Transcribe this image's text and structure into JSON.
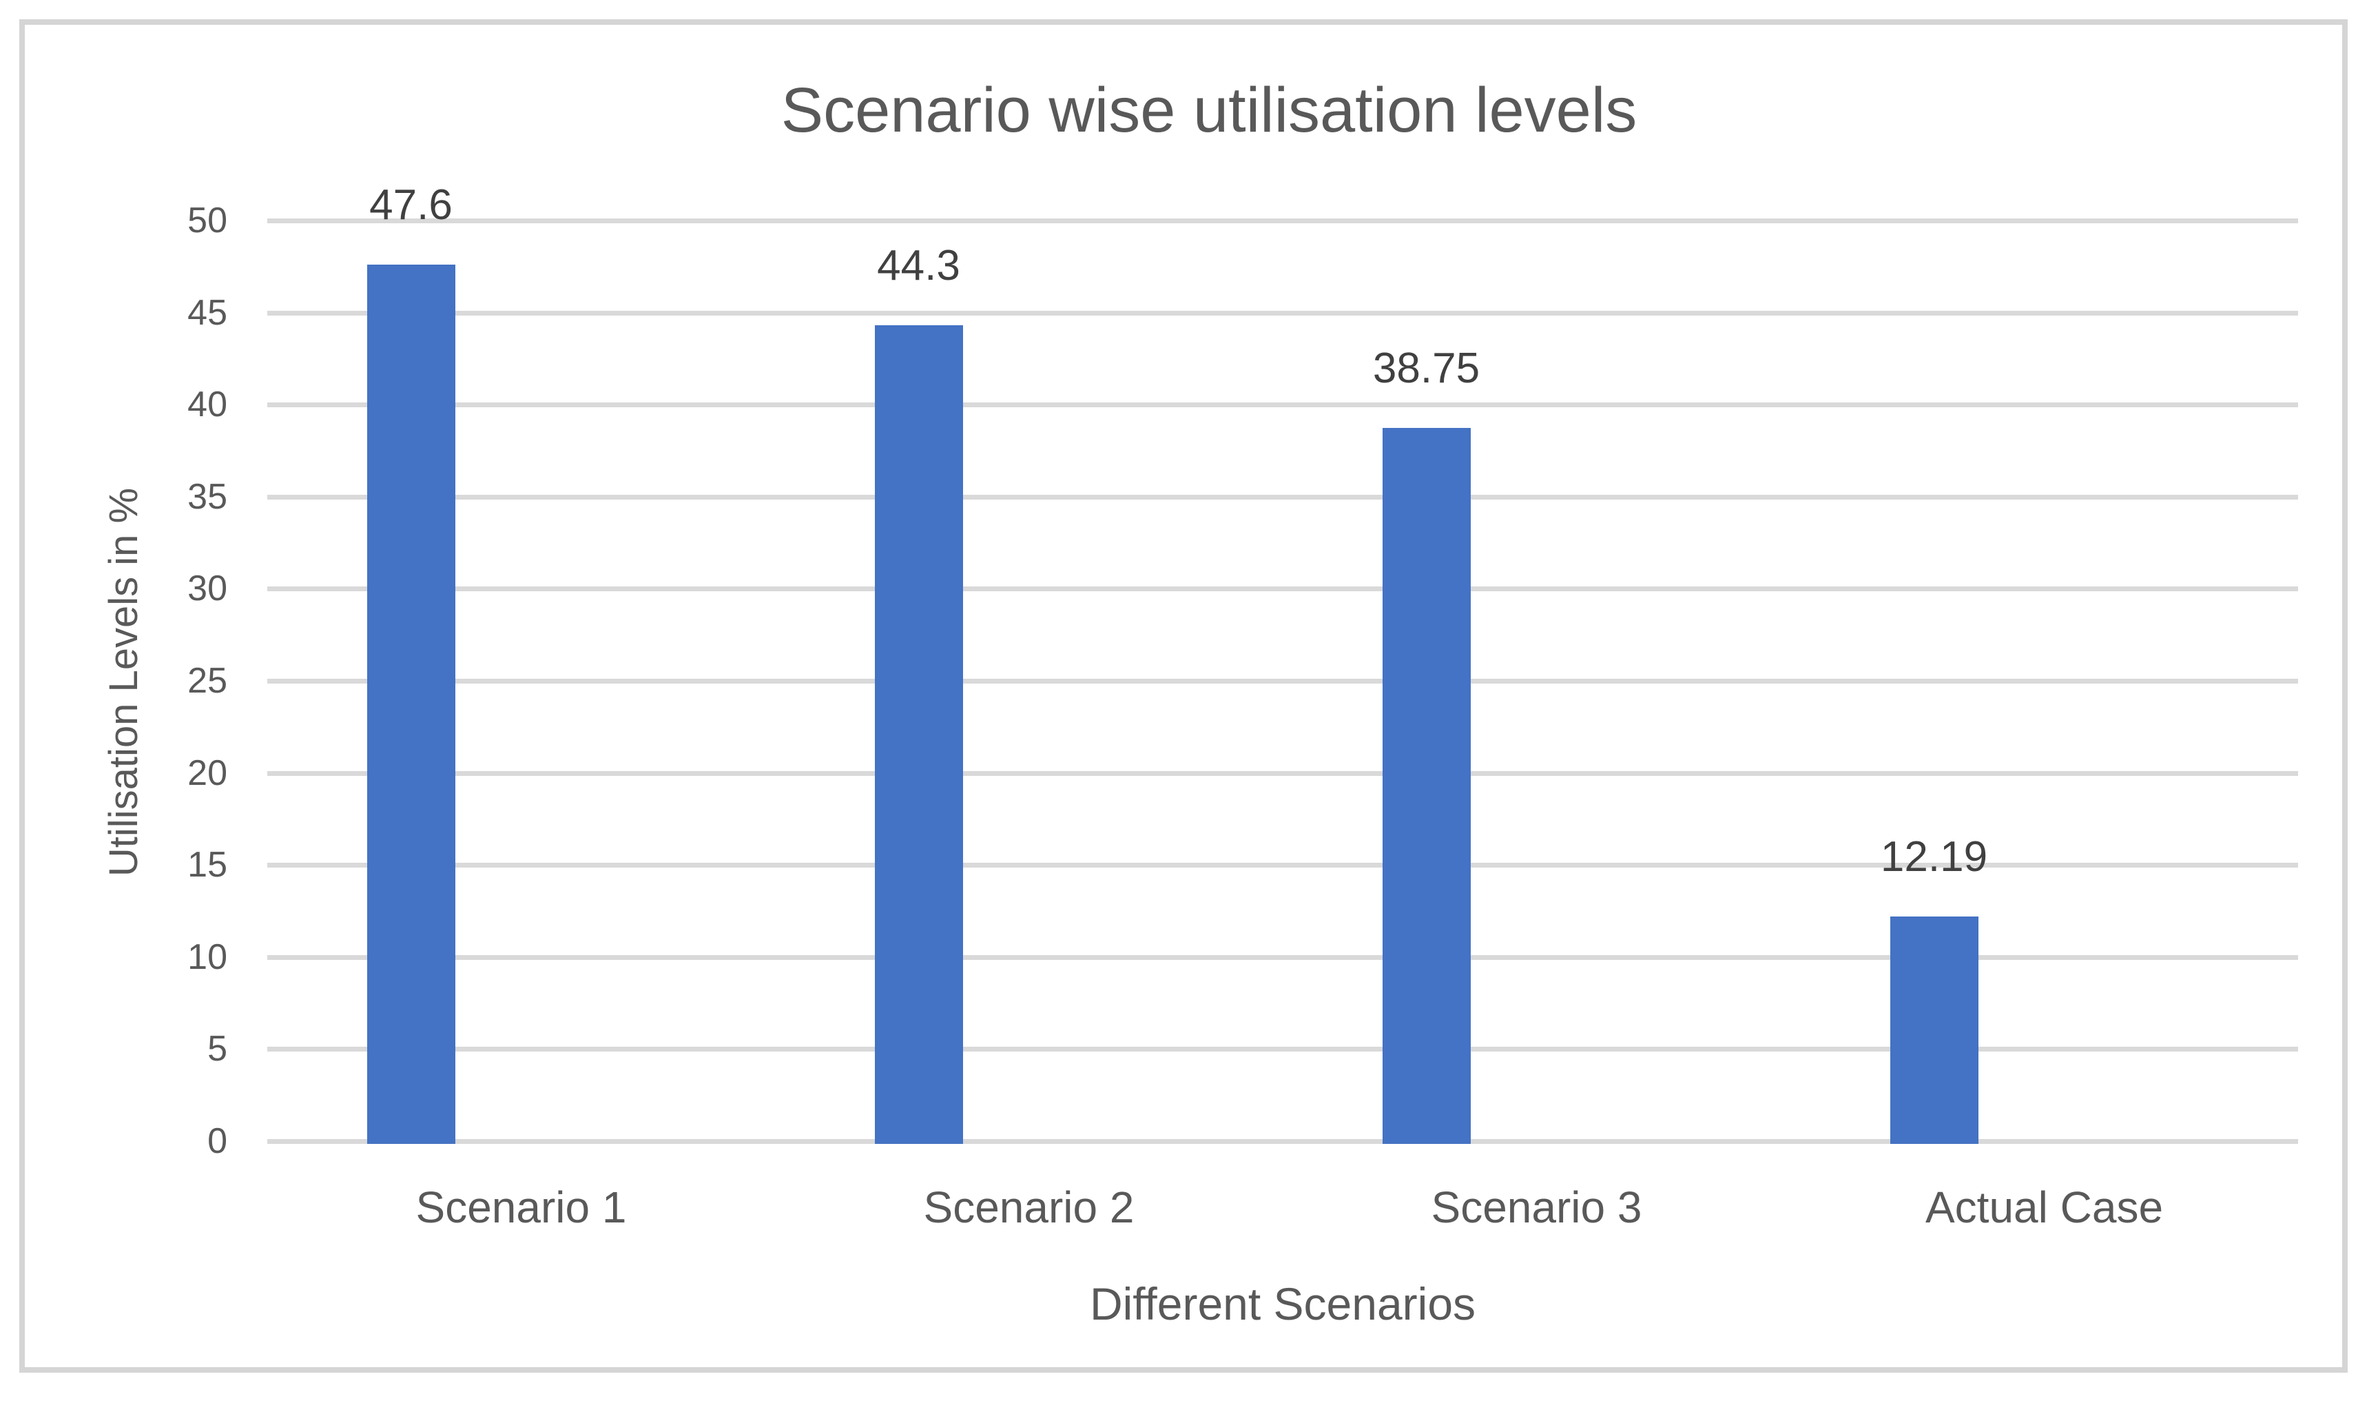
{
  "chart_data": {
    "type": "bar",
    "title": "Scenario wise utilisation levels",
    "categories": [
      "Scenario 1",
      "Scenario 2",
      "Scenario 3",
      "Actual Case"
    ],
    "values": [
      47.6,
      44.3,
      38.75,
      12.19
    ],
    "data_labels": [
      "47.6",
      "44.3",
      "38.75",
      "12.19"
    ],
    "xlabel": "Different Scenarios",
    "ylabel": "Utilisation Levels in %",
    "ylim": [
      0,
      50
    ],
    "ytick_interval": 5,
    "yticks": [
      "0",
      "5",
      "10",
      "15",
      "20",
      "25",
      "30",
      "35",
      "40",
      "45",
      "50"
    ],
    "grid": "horizontal",
    "legend": "none",
    "bar_color": "#4472C4",
    "gridline_color": "#D9D9D9",
    "axis_text_color": "#595959",
    "data_label_color": "#404040",
    "border_color": "#D5D5D5"
  }
}
